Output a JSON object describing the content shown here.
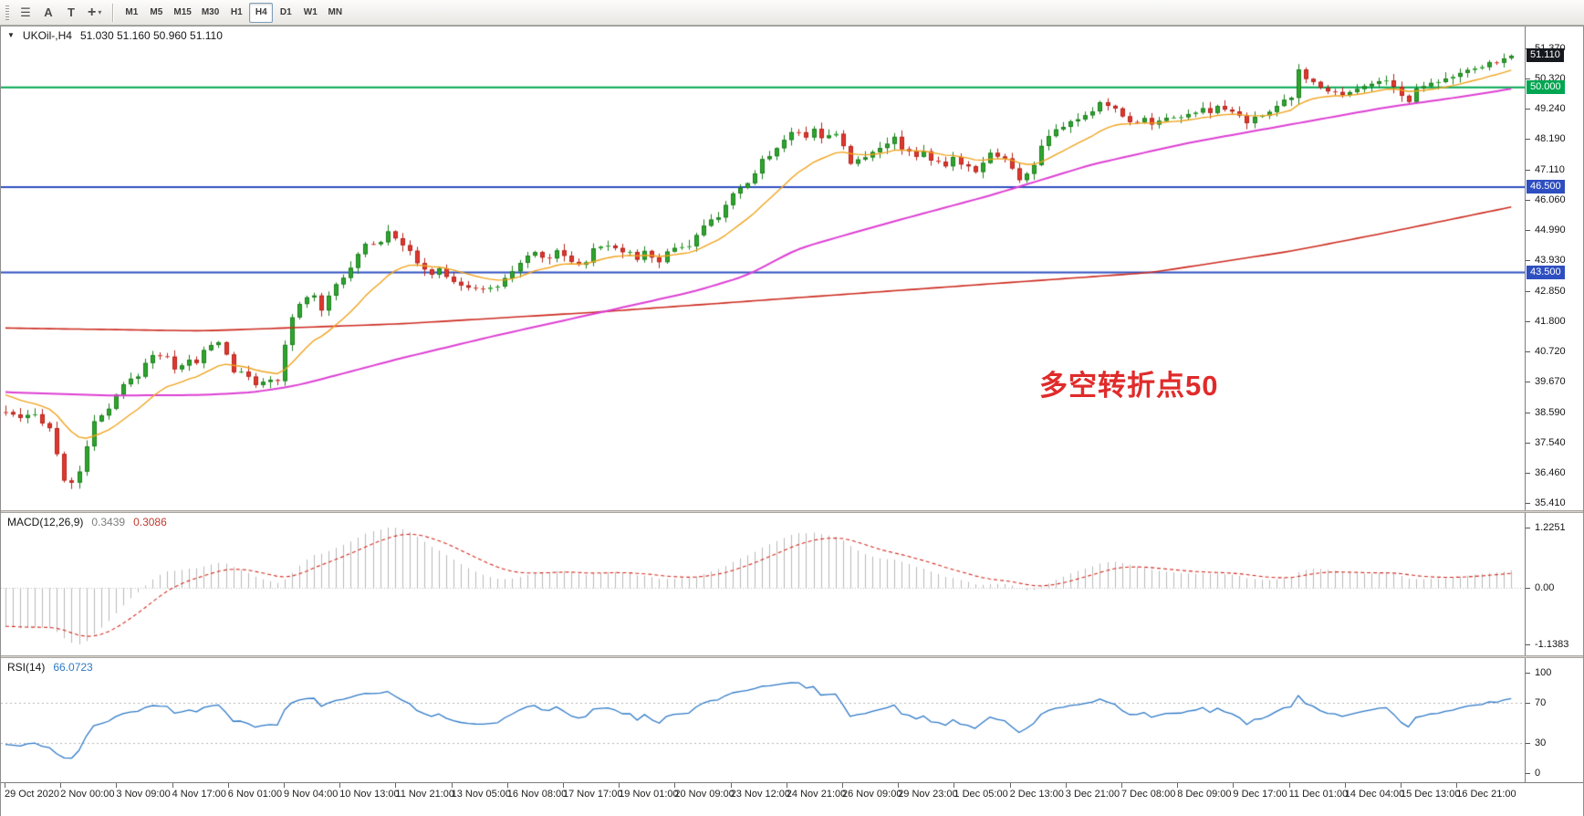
{
  "toolbar": {
    "tools": [
      {
        "name": "charts-list-tool",
        "icon": "menu-lines-icon",
        "glyph": "☰"
      },
      {
        "name": "text-label-tool",
        "icon": "text-a-icon",
        "glyph": "A"
      },
      {
        "name": "text-frame-tool",
        "icon": "text-t-icon",
        "glyph": "T"
      },
      {
        "name": "crosshair-tool",
        "icon": "crosshair-icon",
        "glyph": "+",
        "caret": "▾"
      }
    ],
    "timeframes": [
      {
        "label": "M1"
      },
      {
        "label": "M5"
      },
      {
        "label": "M15"
      },
      {
        "label": "M30"
      },
      {
        "label": "H1"
      },
      {
        "label": "H4",
        "active": true
      },
      {
        "label": "D1"
      },
      {
        "label": "W1"
      },
      {
        "label": "MN"
      }
    ]
  },
  "chart": {
    "collapse_glyph": "▼",
    "title": "UKOil-,H4",
    "ohlc": "51.030 51.160 50.960 51.110",
    "annotation": "多空转折点50",
    "price_scale": [
      "51.370",
      "50.320",
      "49.240",
      "48.190",
      "47.110",
      "46.060",
      "44.990",
      "43.930",
      "42.850",
      "41.800",
      "40.720",
      "39.670",
      "38.590",
      "37.540",
      "36.460",
      "35.410"
    ],
    "markers": [
      {
        "label": "51.110",
        "price": 51.11,
        "bg": "#15181d",
        "fg": "#ffffff"
      },
      {
        "label": "50.000",
        "price": 50.0,
        "bg": "#00a651",
        "fg": "#ffffff"
      },
      {
        "label": "46.500",
        "price": 46.5,
        "bg": "#2e4fc0",
        "fg": "#ffffff"
      },
      {
        "label": "43.500",
        "price": 43.5,
        "bg": "#2e4fc0",
        "fg": "#ffffff"
      }
    ]
  },
  "macd": {
    "label": "MACD(12,26,9)",
    "value_main": "0.3439",
    "value_signal": "0.3086",
    "scale": [
      "1.2251",
      "0.00",
      "-1.1383"
    ]
  },
  "rsi": {
    "label": "RSI(14)",
    "value": "66.0723",
    "scale": [
      "100",
      "70",
      "30",
      "0"
    ]
  },
  "chart_data": {
    "type": "candlestick",
    "symbol": "UKOil-",
    "timeframe": "H4",
    "bars": 206,
    "current_ohlc": {
      "open": 51.03,
      "high": 51.16,
      "low": 50.96,
      "close": 51.11
    },
    "y_range": [
      35.41,
      51.37
    ],
    "horizontal_lines": [
      {
        "price": 50.0,
        "color": "#00a651"
      },
      {
        "price": 46.5,
        "color": "#2e4fc0"
      },
      {
        "price": 43.5,
        "color": "#2e4fc0"
      }
    ],
    "close_waypoints": [
      [
        0,
        38.6
      ],
      [
        2,
        38.35
      ],
      [
        4,
        38.5
      ],
      [
        6,
        38.05
      ],
      [
        7,
        37.1
      ],
      [
        8,
        36.25
      ],
      [
        9,
        36.05
      ],
      [
        10,
        36.55
      ],
      [
        11,
        37.45
      ],
      [
        12,
        38.2
      ],
      [
        14,
        38.7
      ],
      [
        15,
        39.15
      ],
      [
        16,
        39.55
      ],
      [
        18,
        39.9
      ],
      [
        19,
        40.3
      ],
      [
        20,
        40.65
      ],
      [
        22,
        40.5
      ],
      [
        23,
        40.15
      ],
      [
        25,
        40.4
      ],
      [
        26,
        40.3
      ],
      [
        27,
        40.75
      ],
      [
        29,
        41.1
      ],
      [
        30,
        40.6
      ],
      [
        31,
        40.05
      ],
      [
        33,
        39.85
      ],
      [
        34,
        39.6
      ],
      [
        35,
        39.7
      ],
      [
        37,
        39.65
      ],
      [
        38,
        40.9
      ],
      [
        39,
        41.9
      ],
      [
        40,
        42.4
      ],
      [
        41,
        42.6
      ],
      [
        42,
        42.75
      ],
      [
        43,
        42.2
      ],
      [
        44,
        42.7
      ],
      [
        45,
        43.15
      ],
      [
        47,
        43.6
      ],
      [
        48,
        44.15
      ],
      [
        49,
        44.5
      ],
      [
        51,
        44.6
      ],
      [
        52,
        45.0
      ],
      [
        54,
        44.5
      ],
      [
        55,
        44.2
      ],
      [
        56,
        43.8
      ],
      [
        58,
        43.45
      ],
      [
        59,
        43.6
      ],
      [
        60,
        43.35
      ],
      [
        62,
        43.05
      ],
      [
        63,
        42.9
      ],
      [
        64,
        43.0
      ],
      [
        66,
        42.9
      ],
      [
        67,
        43.05
      ],
      [
        68,
        43.3
      ],
      [
        70,
        43.8
      ],
      [
        71,
        44.1
      ],
      [
        72,
        44.2
      ],
      [
        74,
        44.0
      ],
      [
        75,
        44.3
      ],
      [
        76,
        44.1
      ],
      [
        78,
        43.75
      ],
      [
        79,
        43.9
      ],
      [
        80,
        44.3
      ],
      [
        82,
        44.5
      ],
      [
        83,
        44.4
      ],
      [
        85,
        44.15
      ],
      [
        86,
        44.0
      ],
      [
        87,
        44.2
      ],
      [
        89,
        43.9
      ],
      [
        90,
        44.2
      ],
      [
        91,
        44.4
      ],
      [
        93,
        44.45
      ],
      [
        94,
        44.8
      ],
      [
        95,
        45.1
      ],
      [
        97,
        45.5
      ],
      [
        98,
        45.9
      ],
      [
        99,
        46.2
      ],
      [
        101,
        46.6
      ],
      [
        102,
        47.0
      ],
      [
        103,
        47.45
      ],
      [
        105,
        47.85
      ],
      [
        106,
        48.2
      ],
      [
        107,
        48.45
      ],
      [
        109,
        48.3
      ],
      [
        110,
        48.6
      ],
      [
        111,
        48.2
      ],
      [
        113,
        48.4
      ],
      [
        114,
        48.0
      ],
      [
        115,
        47.3
      ],
      [
        117,
        47.55
      ],
      [
        118,
        47.8
      ],
      [
        120,
        48.05
      ],
      [
        121,
        48.2
      ],
      [
        122,
        47.9
      ],
      [
        124,
        47.6
      ],
      [
        125,
        47.8
      ],
      [
        126,
        47.45
      ],
      [
        128,
        47.2
      ],
      [
        129,
        47.5
      ],
      [
        130,
        47.35
      ],
      [
        132,
        47.1
      ],
      [
        133,
        47.4
      ],
      [
        134,
        47.7
      ],
      [
        136,
        47.5
      ],
      [
        137,
        47.15
      ],
      [
        138,
        46.7
      ],
      [
        140,
        47.3
      ],
      [
        141,
        47.9
      ],
      [
        142,
        48.3
      ],
      [
        144,
        48.6
      ],
      [
        145,
        48.8
      ],
      [
        146,
        48.9
      ],
      [
        148,
        49.1
      ],
      [
        149,
        49.5
      ],
      [
        151,
        49.25
      ],
      [
        152,
        48.95
      ],
      [
        153,
        48.8
      ],
      [
        155,
        48.9
      ],
      [
        156,
        48.7
      ],
      [
        157,
        48.9
      ],
      [
        159,
        49.0
      ],
      [
        160,
        48.9
      ],
      [
        161,
        49.05
      ],
      [
        163,
        49.2
      ],
      [
        164,
        49.1
      ],
      [
        165,
        49.3
      ],
      [
        167,
        49.15
      ],
      [
        168,
        49.0
      ],
      [
        169,
        48.8
      ],
      [
        171,
        49.0
      ],
      [
        172,
        49.2
      ],
      [
        173,
        49.4
      ],
      [
        175,
        49.6
      ],
      [
        176,
        50.6
      ],
      [
        177,
        50.3
      ],
      [
        179,
        50.05
      ],
      [
        180,
        49.9
      ],
      [
        182,
        49.75
      ],
      [
        183,
        49.9
      ],
      [
        184,
        50.0
      ],
      [
        186,
        50.1
      ],
      [
        187,
        50.2
      ],
      [
        188,
        50.3
      ],
      [
        190,
        49.7
      ],
      [
        191,
        49.5
      ],
      [
        192,
        49.95
      ],
      [
        193,
        50.1
      ],
      [
        194,
        50.2
      ],
      [
        196,
        50.3
      ],
      [
        197,
        50.4
      ],
      [
        198,
        50.5
      ],
      [
        200,
        50.6
      ],
      [
        201,
        50.75
      ],
      [
        202,
        50.85
      ],
      [
        204,
        51.0
      ],
      [
        205,
        51.11
      ]
    ],
    "ma_fast_period": 14,
    "ma_mid_waypoints": [
      [
        0,
        39.3
      ],
      [
        14,
        39.18
      ],
      [
        27,
        39.2
      ],
      [
        34,
        39.3
      ],
      [
        40,
        39.55
      ],
      [
        54,
        40.5
      ],
      [
        67,
        41.3
      ],
      [
        81,
        42.1
      ],
      [
        94,
        42.85
      ],
      [
        101,
        43.4
      ],
      [
        108,
        44.35
      ],
      [
        121,
        45.3
      ],
      [
        134,
        46.2
      ],
      [
        148,
        47.3
      ],
      [
        161,
        48.05
      ],
      [
        175,
        48.7
      ],
      [
        188,
        49.3
      ],
      [
        199,
        49.7
      ],
      [
        205,
        49.95
      ]
    ],
    "ma_slow_waypoints": [
      [
        0,
        41.55
      ],
      [
        27,
        41.45
      ],
      [
        54,
        41.7
      ],
      [
        80,
        42.1
      ],
      [
        107,
        42.6
      ],
      [
        134,
        43.1
      ],
      [
        156,
        43.5
      ],
      [
        175,
        44.25
      ],
      [
        188,
        44.9
      ],
      [
        205,
        45.8
      ]
    ],
    "macd_range": [
      -1.1383,
      1.2251
    ],
    "rsi_levels": [
      70,
      30
    ],
    "time_labels": [
      "29 Oct 2020",
      "2 Nov 00:00",
      "3 Nov 09:00",
      "4 Nov 17:00",
      "6 Nov 01:00",
      "9 Nov 04:00",
      "10 Nov 13:00",
      "11 Nov 21:00",
      "13 Nov 05:00",
      "16 Nov 08:00",
      "17 Nov 17:00",
      "19 Nov 01:00",
      "20 Nov 09:00",
      "23 Nov 12:00",
      "24 Nov 21:00",
      "26 Nov 09:00",
      "29 Nov 23:00",
      "1 Dec 05:00",
      "2 Dec 13:00",
      "3 Dec 21:00",
      "7 Dec 08:00",
      "8 Dec 09:00",
      "9 Dec 17:00",
      "11 Dec 01:00",
      "14 Dec 04:00",
      "15 Dec 13:00",
      "16 Dec 21:00"
    ],
    "colors": {
      "bull": "#2fa62f",
      "bull_border": "#1d7f1d",
      "bear": "#e0392f",
      "bear_border": "#b5241c",
      "ma_fast": "#efa31d",
      "ma_mid": "#dd3fd3",
      "ma_slow": "#cc2a1f",
      "macd_histogram": "#b9b9b9",
      "macd_signal": "#d22a1e",
      "rsi_line": "#2e79c7",
      "annotation": "#e02b2b"
    }
  }
}
